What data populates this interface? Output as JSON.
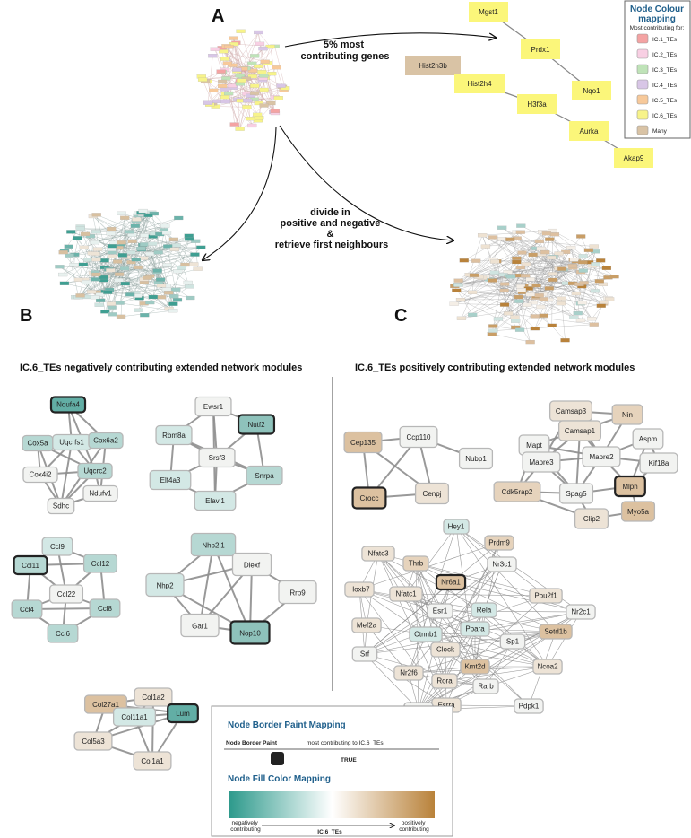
{
  "panels": {
    "a": "A",
    "b": "B",
    "c": "C"
  },
  "arrows": {
    "top_label": [
      "5% most",
      "contributing genes"
    ],
    "split_label": [
      "divide in",
      "positive and negative",
      "&",
      "retrieve first neighbours"
    ]
  },
  "titles": {
    "negative": "IC.6_TEs negatively contributing extended network modules",
    "positive": "IC.6_TEs positively contributing extended network modules"
  },
  "colour_legend": {
    "title_1": "Node Colour",
    "title_2": "mapping",
    "subtitle": "Most contributing for:",
    "items": [
      {
        "label": "IC.1_TEs",
        "color": "#f4a3a3"
      },
      {
        "label": "IC.2_TEs",
        "color": "#f8cfe3"
      },
      {
        "label": "IC.3_TEs",
        "color": "#bfe3b8"
      },
      {
        "label": "IC.4_TEs",
        "color": "#d8c6e6"
      },
      {
        "label": "IC.5_TEs",
        "color": "#f7c99a"
      },
      {
        "label": "IC.6_TEs",
        "color": "#f7f38a"
      },
      {
        "label": "Many",
        "color": "#d9c3a5"
      }
    ]
  },
  "top_genes": [
    "Mgst1",
    "Prdx1",
    "Nqo1",
    "Hist2h3b",
    "Hist2h4",
    "H3f3a",
    "Aurka",
    "Akap9"
  ],
  "modules_negative": {
    "m1": [
      "Ndufa4",
      "Cox5a",
      "Uqcrfs1",
      "Cox6a2",
      "Cox4i2",
      "Uqcrc2",
      "Ndufv1",
      "Sdhc"
    ],
    "m2": [
      "Ewsr1",
      "Rbm8a",
      "Nutf2",
      "Srsf3",
      "Elf4a3",
      "Snrpa",
      "Elavl1"
    ],
    "m3": [
      "Ccl9",
      "Ccl11",
      "Ccl12",
      "Ccl22",
      "Ccl4",
      "Ccl8",
      "Ccl6"
    ],
    "m4": [
      "Nhp2l1",
      "Diexf",
      "Nhp2",
      "Rrp9",
      "Gar1",
      "Nop10"
    ],
    "m5": [
      "Col1a2",
      "Col27a1",
      "Col11a1",
      "Lum",
      "Col5a3",
      "Col1a1"
    ]
  },
  "modules_positive": {
    "m6": [
      "Cep135",
      "Ccp110",
      "Nubp1",
      "Crocc",
      "Cenpj"
    ],
    "m7": [
      "Camsap3",
      "Nin",
      "Mapt",
      "Camsap1",
      "Aspm",
      "Mapre3",
      "Mapre2",
      "Kif18a",
      "Cdk5rap2",
      "Spag5",
      "Mlph",
      "Clip2",
      "Myo5a"
    ],
    "m8": [
      "Hey1",
      "Prdm9",
      "Nfatc3",
      "Thrb",
      "Nr3c1",
      "Hoxb7",
      "Nr6a1",
      "Nfatc1",
      "Pou2f1",
      "Esr1",
      "Rela",
      "Nr2c1",
      "Mef2a",
      "Ctnnb1",
      "Ppara",
      "Setd1b",
      "Srf",
      "Clock",
      "Sp1",
      "Nr2f6",
      "Kmt2d",
      "Ncoa2",
      "Rora",
      "Rarb",
      "Esrra",
      "Pdpk1",
      "Smad6"
    ]
  },
  "border_legend": {
    "title": "Node Border Paint Mapping",
    "col1": "Node Border Paint",
    "col2": "most contributing to IC.6_TEs",
    "value": "TRUE"
  },
  "fill_legend": {
    "title": "Node Fill Color Mapping",
    "left": [
      "negatively",
      "contributing"
    ],
    "right": [
      "positively",
      "contributing"
    ],
    "axis": "IC.6_TEs",
    "colors": {
      "negative": "#2e9a8c",
      "neutral": "#ffffff",
      "positive": "#b9823a"
    }
  }
}
